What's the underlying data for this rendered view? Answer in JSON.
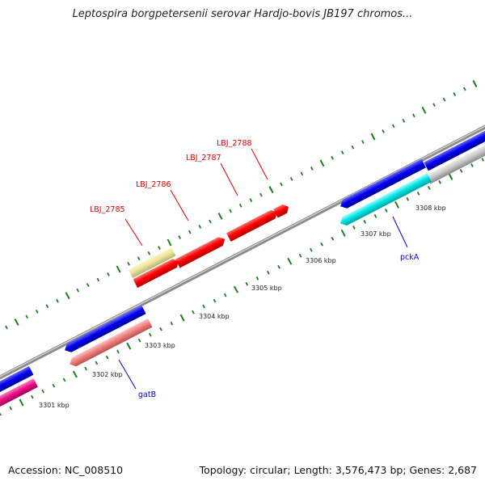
{
  "title": "Leptospira borgpetersenii serovar Hardjo-bovis JB197 chromos...",
  "footer": {
    "accession": "Accession: NC_008510",
    "summary": "Topology: circular; Length: 3,576,473 bp; Genes: 2,687"
  },
  "colors": {
    "backbone": "#8c8c8c",
    "tick": "#1e7d1e",
    "red_label": "#dd0000",
    "blue_label": "#0000cc"
  },
  "kbp_ticks": [
    "3301 kbp",
    "3302 kbp",
    "3303 kbp",
    "3304 kbp",
    "3305 kbp",
    "3306 kbp",
    "3307 kbp",
    "3308 kbp"
  ],
  "gene_labels": [
    {
      "text": "LBJ_2785",
      "color": "#dd0000"
    },
    {
      "text": "LBJ_2786",
      "color": "#dd0000"
    },
    {
      "text": "LBJ_2787",
      "color": "#dd0000"
    },
    {
      "text": "LBJ_2788",
      "color": "#dd0000"
    },
    {
      "text": "gatB",
      "color": "#0000cc"
    },
    {
      "text": "pckA",
      "color": "#0000cc"
    }
  ]
}
